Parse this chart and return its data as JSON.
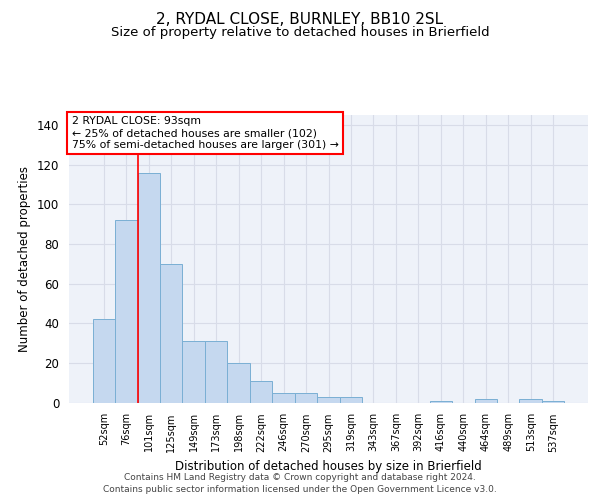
{
  "title1": "2, RYDAL CLOSE, BURNLEY, BB10 2SL",
  "title2": "Size of property relative to detached houses in Brierfield",
  "xlabel": "Distribution of detached houses by size in Brierfield",
  "ylabel": "Number of detached properties",
  "categories": [
    "52sqm",
    "76sqm",
    "101sqm",
    "125sqm",
    "149sqm",
    "173sqm",
    "198sqm",
    "222sqm",
    "246sqm",
    "270sqm",
    "295sqm",
    "319sqm",
    "343sqm",
    "367sqm",
    "392sqm",
    "416sqm",
    "440sqm",
    "464sqm",
    "489sqm",
    "513sqm",
    "537sqm"
  ],
  "values": [
    42,
    92,
    116,
    70,
    31,
    31,
    20,
    11,
    5,
    5,
    3,
    3,
    0,
    0,
    0,
    1,
    0,
    2,
    0,
    2,
    1
  ],
  "bar_color": "#c5d8ef",
  "bar_edge_color": "#7aafd4",
  "red_line_x": 1.5,
  "annotation_line1": "2 RYDAL CLOSE: 93sqm",
  "annotation_line2": "← 25% of detached houses are smaller (102)",
  "annotation_line3": "75% of semi-detached houses are larger (301) →",
  "ylim": [
    0,
    145
  ],
  "yticks": [
    0,
    20,
    40,
    60,
    80,
    100,
    120,
    140
  ],
  "footer1": "Contains HM Land Registry data © Crown copyright and database right 2024.",
  "footer2": "Contains public sector information licensed under the Open Government Licence v3.0.",
  "bg_color": "#eef2f9",
  "grid_color": "#d8dce8",
  "title1_fontsize": 11,
  "title2_fontsize": 9.5
}
